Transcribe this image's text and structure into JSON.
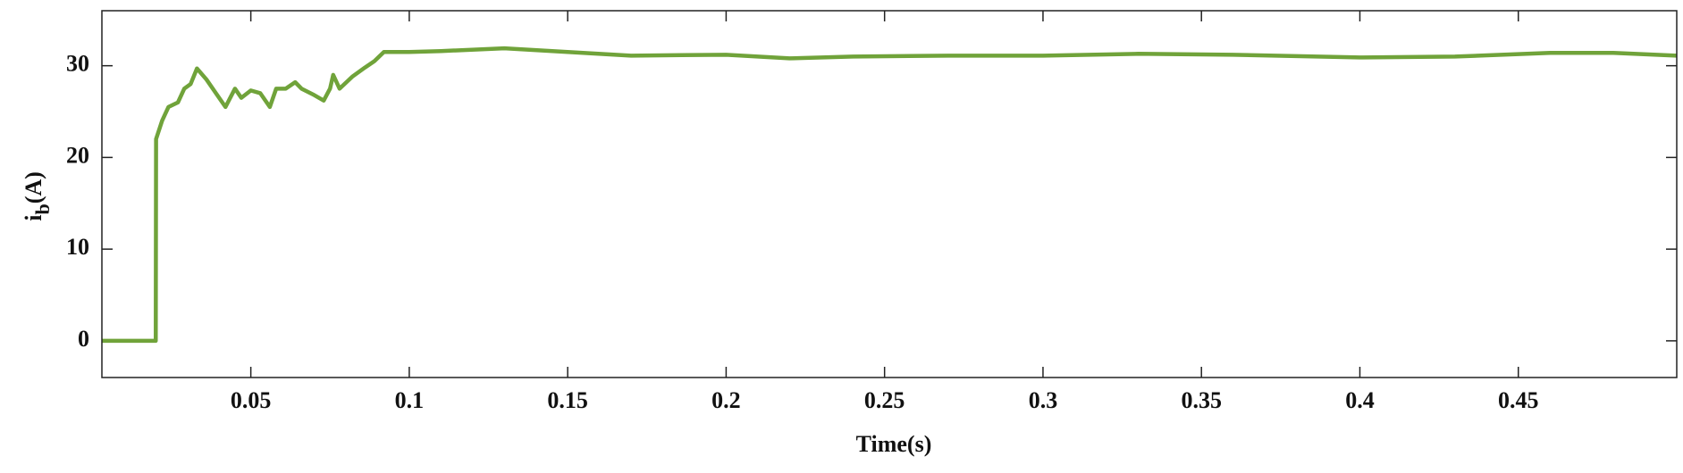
{
  "chart_data": {
    "type": "line",
    "x_label": "Time(s)",
    "y_label": {
      "main": "i",
      "sub": "b",
      "unit": "(A)"
    },
    "x": [
      0.003,
      0.02,
      0.0201,
      0.022,
      0.024,
      0.027,
      0.029,
      0.031,
      0.033,
      0.036,
      0.039,
      0.042,
      0.045,
      0.047,
      0.05,
      0.053,
      0.056,
      0.058,
      0.061,
      0.064,
      0.066,
      0.07,
      0.073,
      0.075,
      0.076,
      0.078,
      0.082,
      0.086,
      0.089,
      0.092,
      0.1,
      0.11,
      0.13,
      0.15,
      0.17,
      0.2,
      0.22,
      0.24,
      0.27,
      0.3,
      0.33,
      0.36,
      0.4,
      0.43,
      0.46,
      0.48,
      0.5
    ],
    "series": [
      {
        "color": "#70a33a",
        "values": [
          0,
          0,
          22,
          24,
          25.5,
          26,
          27.5,
          28,
          29.7,
          28.5,
          27,
          25.5,
          27.5,
          26.5,
          27.3,
          27,
          25.5,
          27.5,
          27.5,
          28.2,
          27.5,
          26.8,
          26.2,
          27.5,
          29,
          27.5,
          28.8,
          29.8,
          30.5,
          31.5,
          31.5,
          31.6,
          31.9,
          31.5,
          31.1,
          31.2,
          30.8,
          31,
          31.1,
          31.1,
          31.3,
          31.2,
          30.9,
          31,
          31.4,
          31.4,
          31.1
        ]
      }
    ],
    "xlim": [
      0.003,
      0.5
    ],
    "ylim": [
      -4,
      36
    ],
    "xticks": [
      0.05,
      0.1,
      0.15,
      0.2,
      0.25,
      0.3,
      0.35,
      0.4,
      0.45
    ],
    "yticks": [
      0,
      10,
      20,
      30
    ],
    "grid": false
  }
}
